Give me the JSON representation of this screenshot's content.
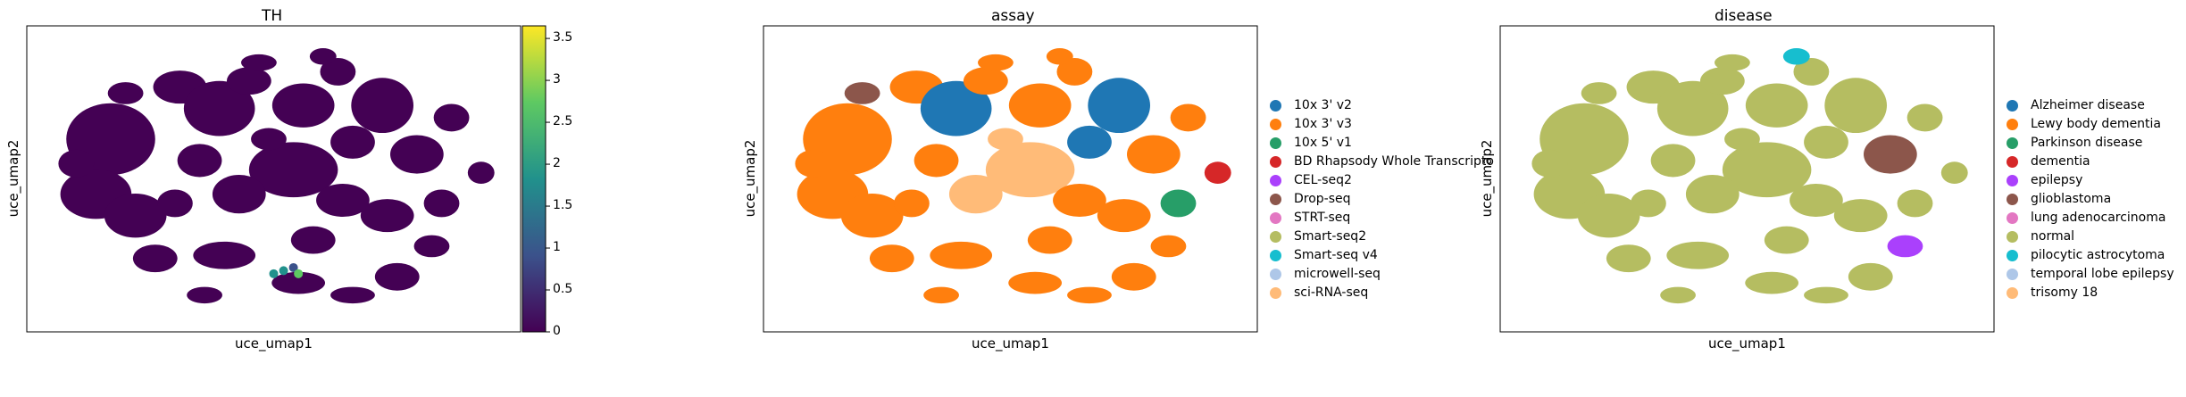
{
  "panels": [
    {
      "id": "th",
      "title": "TH",
      "xlabel": "uce_umap1",
      "ylabel": "uce_umap2",
      "colorbar": {
        "ticks": [
          "0",
          "0.5",
          "1",
          "1.5",
          "2",
          "2.5",
          "3",
          "3.5"
        ],
        "tick_values": [
          0,
          0.5,
          1,
          1.5,
          2,
          2.5,
          3,
          3.5
        ],
        "range": [
          0,
          3.65
        ],
        "colormap": "viridis",
        "colors": [
          "#440154",
          "#3b528b",
          "#21918c",
          "#5ec962",
          "#fde725"
        ]
      },
      "base_color": "#440154"
    },
    {
      "id": "assay",
      "title": "assay",
      "xlabel": "uce_umap1",
      "ylabel": "uce_umap2",
      "legend": [
        {
          "label": "10x 3' v2",
          "color": "#1f77b4"
        },
        {
          "label": "10x 3' v3",
          "color": "#ff7f0e"
        },
        {
          "label": "10x 5' v1",
          "color": "#279e68"
        },
        {
          "label": "BD Rhapsody Whole Transcripto",
          "color": "#d62728"
        },
        {
          "label": "CEL-seq2",
          "color": "#aa40fc"
        },
        {
          "label": "Drop-seq",
          "color": "#8c564b"
        },
        {
          "label": "STRT-seq",
          "color": "#e377c2"
        },
        {
          "label": "Smart-seq2",
          "color": "#b5bd61"
        },
        {
          "label": "Smart-seq v4",
          "color": "#17becf"
        },
        {
          "label": "microwell-seq",
          "color": "#aec7e8"
        },
        {
          "label": "sci-RNA-seq",
          "color": "#ffbb78"
        }
      ],
      "base_color": "#ff7f0e"
    },
    {
      "id": "disease",
      "title": "disease",
      "xlabel": "uce_umap1",
      "ylabel": "uce_umap2",
      "legend": [
        {
          "label": "Alzheimer disease",
          "color": "#1f77b4"
        },
        {
          "label": "Lewy body dementia",
          "color": "#ff7f0e"
        },
        {
          "label": "Parkinson disease",
          "color": "#279e68"
        },
        {
          "label": "dementia",
          "color": "#d62728"
        },
        {
          "label": "epilepsy",
          "color": "#aa40fc"
        },
        {
          "label": "glioblastoma",
          "color": "#8c564b"
        },
        {
          "label": "lung adenocarcinoma",
          "color": "#e377c2"
        },
        {
          "label": "normal",
          "color": "#b5bd61"
        },
        {
          "label": "pilocytic astrocytoma",
          "color": "#17becf"
        },
        {
          "label": "temporal lobe epilepsy",
          "color": "#aec7e8"
        },
        {
          "label": "trisomy 18",
          "color": "#ffbb78"
        }
      ],
      "base_color": "#b5bd61"
    }
  ],
  "chart_data": [
    {
      "type": "scatter",
      "title": "TH",
      "xlabel": "uce_umap1",
      "ylabel": "uce_umap2",
      "color_by": "continuous",
      "colorbar_range": [
        0,
        3.65
      ],
      "colorbar_ticks": [
        0,
        0.5,
        1,
        1.5,
        2,
        2.5,
        3,
        3.5
      ],
      "axis_ticks": false
    },
    {
      "type": "scatter",
      "title": "assay",
      "xlabel": "uce_umap1",
      "ylabel": "uce_umap2",
      "color_by": "categorical",
      "categories": [
        "10x 3' v2",
        "10x 3' v3",
        "10x 5' v1",
        "BD Rhapsody Whole Transcripto",
        "CEL-seq2",
        "Drop-seq",
        "STRT-seq",
        "Smart-seq2",
        "Smart-seq v4",
        "microwell-seq",
        "sci-RNA-seq"
      ],
      "legend_position": "right",
      "axis_ticks": false
    },
    {
      "type": "scatter",
      "title": "disease",
      "xlabel": "uce_umap1",
      "ylabel": "uce_umap2",
      "color_by": "categorical",
      "categories": [
        "Alzheimer disease",
        "Lewy body dementia",
        "Parkinson disease",
        "dementia",
        "epilepsy",
        "glioblastoma",
        "lung adenocarcinoma",
        "normal",
        "pilocytic astrocytoma",
        "temporal lobe epilepsy",
        "trisomy 18"
      ],
      "legend_position": "right",
      "axis_ticks": false
    }
  ]
}
